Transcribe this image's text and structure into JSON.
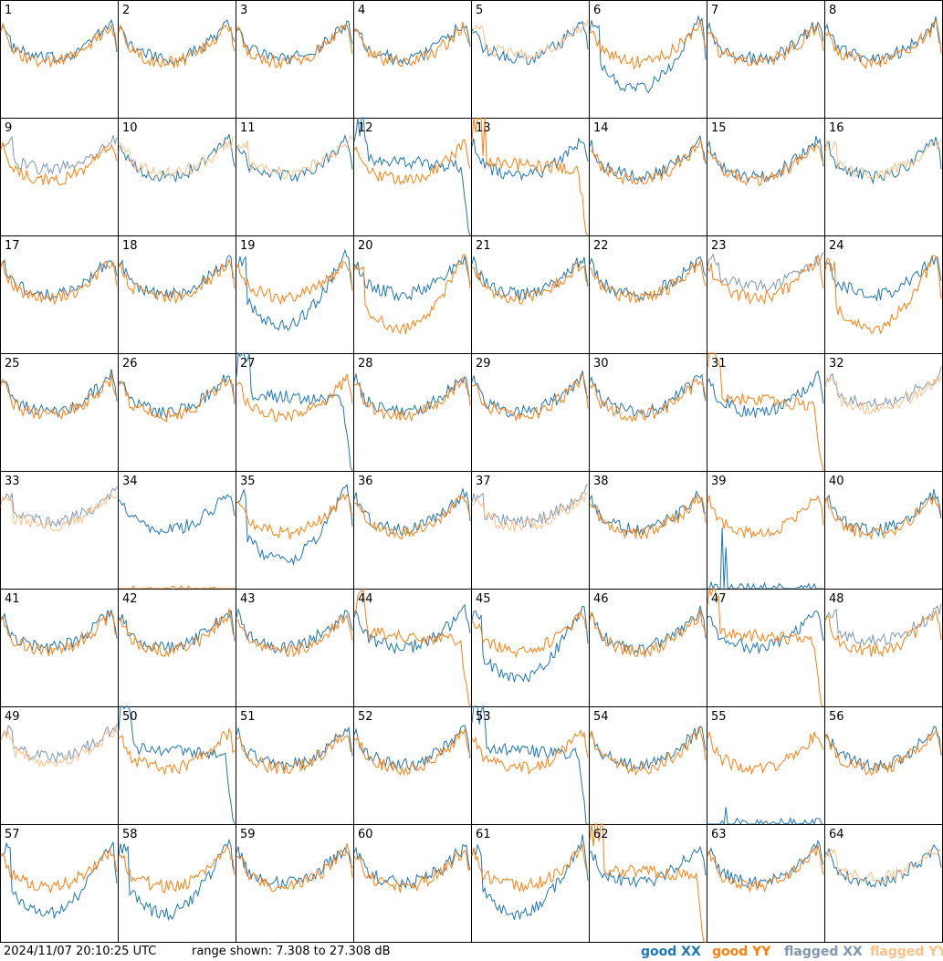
{
  "chart_data": {
    "type": "line",
    "grid": {
      "rows": 8,
      "cols": 8
    },
    "panel_labels": [
      "1",
      "2",
      "3",
      "4",
      "5",
      "6",
      "7",
      "8",
      "9",
      "10",
      "11",
      "12",
      "13",
      "14",
      "15",
      "16",
      "17",
      "18",
      "19",
      "20",
      "21",
      "22",
      "23",
      "24",
      "25",
      "26",
      "27",
      "28",
      "29",
      "30",
      "31",
      "32",
      "33",
      "34",
      "35",
      "36",
      "37",
      "38",
      "39",
      "40",
      "41",
      "42",
      "43",
      "44",
      "45",
      "46",
      "47",
      "48",
      "49",
      "50",
      "51",
      "52",
      "53",
      "54",
      "55",
      "56",
      "57",
      "58",
      "59",
      "60",
      "61",
      "62",
      "63",
      "64"
    ],
    "ylim_db": [
      7.308,
      27.308
    ],
    "x_samples": 64,
    "panels": [
      {
        "xx": "normal",
        "yy": "normal"
      },
      {
        "xx": "normal",
        "yy": "normal"
      },
      {
        "xx": "normal",
        "yy": "normal"
      },
      {
        "xx": "normal",
        "yy": "normal"
      },
      {
        "xx": "normal",
        "yy": "flagged"
      },
      {
        "xx": "lowdip",
        "yy": "normal"
      },
      {
        "xx": "normal",
        "yy": "normal"
      },
      {
        "xx": "normal",
        "yy": "normal"
      },
      {
        "xx": "flagged",
        "yy": "normal"
      },
      {
        "xx": "normal",
        "yy": "flagged"
      },
      {
        "xx": "normal",
        "yy": "flagged"
      },
      {
        "xx": "plateau",
        "yy": "normal"
      },
      {
        "xx": "normal",
        "yy": "plateau"
      },
      {
        "xx": "normal",
        "yy": "normal"
      },
      {
        "xx": "normal",
        "yy": "normal"
      },
      {
        "xx": "normal",
        "yy": "flagged"
      },
      {
        "xx": "normal",
        "yy": "normal"
      },
      {
        "xx": "normal",
        "yy": "normal"
      },
      {
        "xx": "lowdip",
        "yy": "normal"
      },
      {
        "xx": "normal",
        "yy": "lowdip"
      },
      {
        "xx": "normal",
        "yy": "normal"
      },
      {
        "xx": "normal",
        "yy": "normal"
      },
      {
        "xx": "flagged",
        "yy": "normal"
      },
      {
        "xx": "normal",
        "yy": "lowdip"
      },
      {
        "xx": "normal",
        "yy": "normal"
      },
      {
        "xx": "normal",
        "yy": "normal"
      },
      {
        "xx": "plateau",
        "yy": "normal"
      },
      {
        "xx": "normal",
        "yy": "normal"
      },
      {
        "xx": "normal",
        "yy": "normal"
      },
      {
        "xx": "normal",
        "yy": "normal"
      },
      {
        "xx": "normal",
        "yy": "plateau"
      },
      {
        "xx": "flagged",
        "yy": "flagged"
      },
      {
        "xx": "flagged",
        "yy": "flagged"
      },
      {
        "xx": "normal",
        "yy": "spike"
      },
      {
        "xx": "lowdip",
        "yy": "normal"
      },
      {
        "xx": "normal",
        "yy": "normal"
      },
      {
        "xx": "flagged",
        "yy": "flagged"
      },
      {
        "xx": "normal",
        "yy": "normal"
      },
      {
        "xx": "spike",
        "yy": "normal"
      },
      {
        "xx": "normal",
        "yy": "normal"
      },
      {
        "xx": "normal",
        "yy": "normal"
      },
      {
        "xx": "normal",
        "yy": "normal"
      },
      {
        "xx": "normal",
        "yy": "normal"
      },
      {
        "xx": "normal",
        "yy": "plateau"
      },
      {
        "xx": "lowdip",
        "yy": "normal"
      },
      {
        "xx": "normal",
        "yy": "normal"
      },
      {
        "xx": "normal",
        "yy": "plateau"
      },
      {
        "xx": "flagged",
        "yy": "normal"
      },
      {
        "xx": "flagged",
        "yy": "flagged"
      },
      {
        "xx": "plateau",
        "yy": "normal"
      },
      {
        "xx": "normal",
        "yy": "normal"
      },
      {
        "xx": "normal",
        "yy": "normal"
      },
      {
        "xx": "plateau",
        "yy": "normal"
      },
      {
        "xx": "normal",
        "yy": "normal"
      },
      {
        "xx": "spike",
        "yy": "normal"
      },
      {
        "xx": "normal",
        "yy": "normal"
      },
      {
        "xx": "lowdip",
        "yy": "normal"
      },
      {
        "xx": "lowdip",
        "yy": "normal"
      },
      {
        "xx": "normal",
        "yy": "normal"
      },
      {
        "xx": "normal",
        "yy": "normal"
      },
      {
        "xx": "lowdip",
        "yy": "normal"
      },
      {
        "xx": "normal",
        "yy": "plateau"
      },
      {
        "xx": "normal",
        "yy": "normal"
      },
      {
        "xx": "normal",
        "yy": "flagged"
      }
    ],
    "legend": [
      {
        "name": "good XX",
        "color": "#1f77b4"
      },
      {
        "name": "good YY",
        "color": "#ff7f0e"
      },
      {
        "name": "flagged XX",
        "color": "#7f97b2"
      },
      {
        "name": "flagged YY",
        "color": "#ffbf87"
      }
    ]
  },
  "footer": {
    "timestamp": "2024/11/07 20:10:25 UTC",
    "range_text": "range shown: 7.308 to 27.308 dB"
  }
}
